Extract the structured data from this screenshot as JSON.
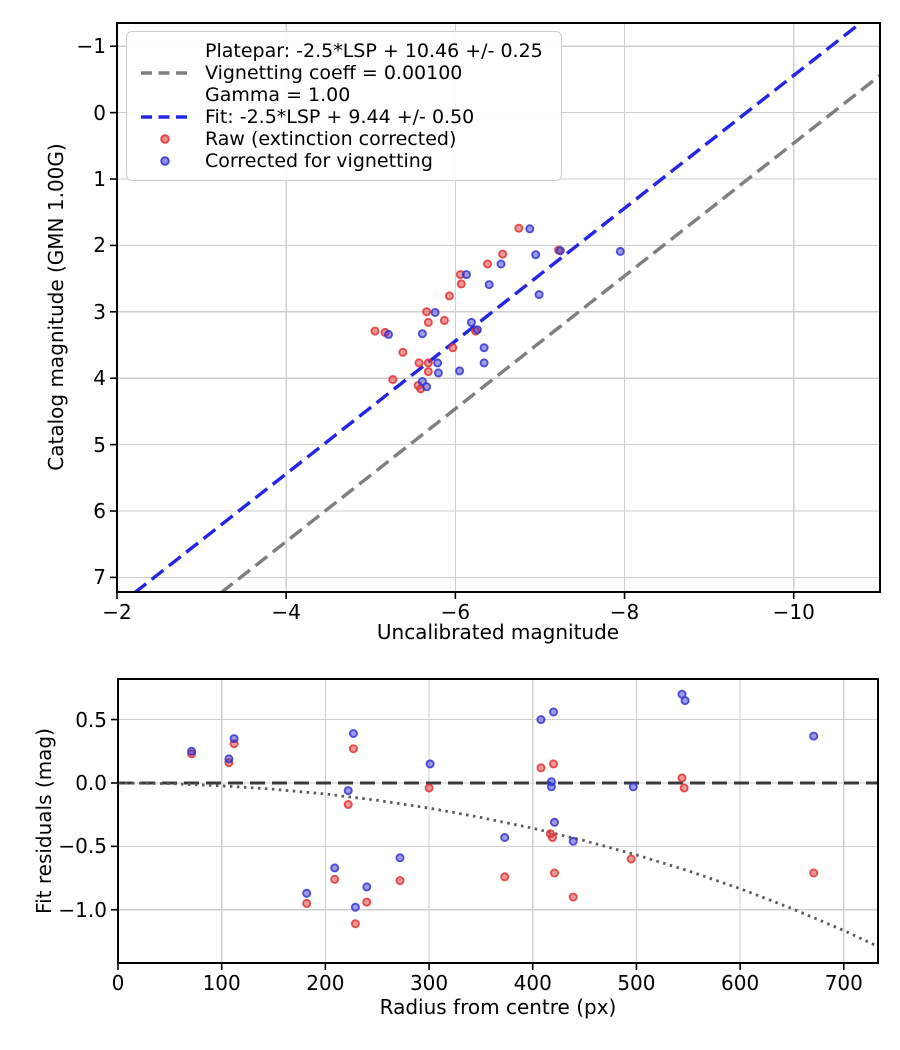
{
  "figure_bg": "#ffffff",
  "colors": {
    "grid": "#cfcfcf",
    "spine": "#000000",
    "platepar_line": "#7f7f7f",
    "fit_line": "#2525e6",
    "raw_marker": "#e03232",
    "corrected_marker": "#3434cf",
    "zero_line": "#3a3a3a",
    "vignetting_curve": "#5a5a5a"
  },
  "chart_data": [
    {
      "type": "scatter",
      "xlabel": "Uncalibrated magnitude",
      "ylabel": "Catalog magnitude (GMN 1.00G)",
      "xlim": [
        -2,
        -11.02
      ],
      "ylim_top": -1.35,
      "ylim_bottom": 7.22,
      "x_inverted": true,
      "y_inverted": true,
      "grid": true,
      "xticks": {
        "values": [
          -2,
          -4,
          -6,
          -8,
          -10
        ],
        "labels": [
          "−2",
          "−4",
          "−6",
          "−8",
          "−10"
        ]
      },
      "yticks": {
        "values": [
          -1,
          0,
          1,
          2,
          3,
          4,
          5,
          6,
          7
        ],
        "labels": [
          "−1",
          "0",
          "1",
          "2",
          "3",
          "4",
          "5",
          "6",
          "7"
        ]
      },
      "legend": {
        "position": "upper left",
        "entries": [
          {
            "symbol": "dash",
            "color": "#7f7f7f",
            "lines": [
              "Platepar: -2.5*LSP + 10.46 +/- 0.25",
              "Vignetting coeff = 0.00100",
              "Gamma = 1.00"
            ]
          },
          {
            "symbol": "dash",
            "color": "#2525e6",
            "lines": [
              "Fit: -2.5*LSP + 9.44 +/- 0.50"
            ]
          },
          {
            "symbol": "dot",
            "color": "#e03232",
            "lines": [
              "Raw (extinction corrected)"
            ]
          },
          {
            "symbol": "dot",
            "color": "#3434cf",
            "lines": [
              "Corrected for vignetting"
            ]
          }
        ]
      },
      "series": [
        {
          "name": "Platepar line",
          "kind": "line",
          "style": "dashed",
          "color": "#7f7f7f",
          "slope": 1,
          "intercept": 10.46
        },
        {
          "name": "Fit line",
          "kind": "line",
          "style": "dashed",
          "color": "#2525e6",
          "slope": 1,
          "intercept": 9.44
        },
        {
          "name": "Raw (extinction corrected)",
          "kind": "scatter",
          "color": "#e03232",
          "points": [
            [
              -6.75,
              1.74
            ],
            [
              -7.22,
              2.07
            ],
            [
              -6.56,
              2.13
            ],
            [
              -6.38,
              2.28
            ],
            [
              -6.06,
              2.44
            ],
            [
              -6.07,
              2.58
            ],
            [
              -5.93,
              2.76
            ],
            [
              -5.66,
              3.0
            ],
            [
              -5.87,
              3.13
            ],
            [
              -5.68,
              3.16
            ],
            [
              -5.05,
              3.29
            ],
            [
              -5.17,
              3.31
            ],
            [
              -6.24,
              3.29
            ],
            [
              -5.97,
              3.54
            ],
            [
              -5.38,
              3.61
            ],
            [
              -5.57,
              3.77
            ],
            [
              -5.68,
              3.77
            ],
            [
              -5.68,
              3.9
            ],
            [
              -5.26,
              4.02
            ],
            [
              -5.56,
              4.11
            ],
            [
              -5.59,
              4.16
            ]
          ]
        },
        {
          "name": "Corrected for vignetting",
          "kind": "scatter",
          "color": "#3434cf",
          "points": [
            [
              -6.88,
              1.75
            ],
            [
              -7.24,
              2.08
            ],
            [
              -6.95,
              2.14
            ],
            [
              -7.95,
              2.09
            ],
            [
              -6.54,
              2.28
            ],
            [
              -6.13,
              2.44
            ],
            [
              -6.4,
              2.59
            ],
            [
              -6.99,
              2.74
            ],
            [
              -5.76,
              3.01
            ],
            [
              -5.61,
              3.33
            ],
            [
              -5.21,
              3.34
            ],
            [
              -6.26,
              3.27
            ],
            [
              -6.19,
              3.16
            ],
            [
              -6.34,
              3.54
            ],
            [
              -6.34,
              3.77
            ],
            [
              -5.79,
              3.77
            ],
            [
              -6.05,
              3.89
            ],
            [
              -5.8,
              3.92
            ],
            [
              -5.61,
              4.05
            ],
            [
              -5.66,
              4.13
            ]
          ]
        }
      ]
    },
    {
      "type": "scatter",
      "xlabel": "Radius from centre (px)",
      "ylabel": "Fit residuals (mag)",
      "xlim": [
        0,
        733
      ],
      "ylim_top": 0.82,
      "ylim_bottom": -1.42,
      "grid": true,
      "xticks": {
        "values": [
          0,
          100,
          200,
          300,
          400,
          500,
          600,
          700
        ],
        "labels": [
          "0",
          "100",
          "200",
          "300",
          "400",
          "500",
          "600",
          "700"
        ]
      },
      "yticks": {
        "values": [
          0.5,
          0.0,
          -0.5,
          -1.0
        ],
        "labels": [
          "0.5",
          "0.0",
          "−0.5",
          "−1.0"
        ]
      },
      "series": [
        {
          "name": "Zero residual line",
          "kind": "hline",
          "style": "dashed",
          "color": "#3a3a3a",
          "y": 0
        },
        {
          "name": "Vignetting model curve",
          "kind": "curve",
          "style": "dotted",
          "color": "#5a5a5a",
          "points": [
            [
              0,
              0
            ],
            [
              50,
              -0.005
            ],
            [
              100,
              -0.022
            ],
            [
              150,
              -0.049
            ],
            [
              200,
              -0.087
            ],
            [
              250,
              -0.137
            ],
            [
              300,
              -0.198
            ],
            [
              350,
              -0.272
            ],
            [
              400,
              -0.357
            ],
            [
              450,
              -0.455
            ],
            [
              500,
              -0.567
            ],
            [
              550,
              -0.693
            ],
            [
              600,
              -0.834
            ],
            [
              650,
              -0.99
            ],
            [
              700,
              -1.164
            ],
            [
              733,
              -1.29
            ]
          ]
        },
        {
          "name": "Raw residuals",
          "kind": "scatter",
          "color": "#e03232",
          "points": [
            [
              71,
              0.23
            ],
            [
              112,
              0.31
            ],
            [
              107,
              0.16
            ],
            [
              182,
              -0.95
            ],
            [
              209,
              -0.76
            ],
            [
              222,
              -0.17
            ],
            [
              227,
              0.27
            ],
            [
              229,
              -1.11
            ],
            [
              240,
              -0.94
            ],
            [
              272,
              -0.77
            ],
            [
              300,
              -0.04
            ],
            [
              373,
              -0.74
            ],
            [
              408,
              0.12
            ],
            [
              417,
              -0.4
            ],
            [
              419,
              -0.43
            ],
            [
              420,
              0.15
            ],
            [
              421,
              -0.71
            ],
            [
              439,
              -0.9
            ],
            [
              495,
              -0.6
            ],
            [
              544,
              0.04
            ],
            [
              546,
              -0.04
            ],
            [
              671,
              -0.71
            ]
          ]
        },
        {
          "name": "Corrected residuals",
          "kind": "scatter",
          "color": "#3434cf",
          "points": [
            [
              71,
              0.25
            ],
            [
              112,
              0.35
            ],
            [
              107,
              0.19
            ],
            [
              182,
              -0.87
            ],
            [
              209,
              -0.67
            ],
            [
              222,
              -0.06
            ],
            [
              227,
              0.39
            ],
            [
              229,
              -0.98
            ],
            [
              240,
              -0.82
            ],
            [
              272,
              -0.59
            ],
            [
              301,
              0.15
            ],
            [
              373,
              -0.43
            ],
            [
              408,
              0.5
            ],
            [
              418,
              0.01
            ],
            [
              418,
              -0.03
            ],
            [
              420,
              0.56
            ],
            [
              421,
              -0.31
            ],
            [
              439,
              -0.46
            ],
            [
              497,
              -0.03
            ],
            [
              544,
              0.7
            ],
            [
              547,
              0.65
            ],
            [
              671,
              0.37
            ]
          ]
        }
      ]
    }
  ]
}
